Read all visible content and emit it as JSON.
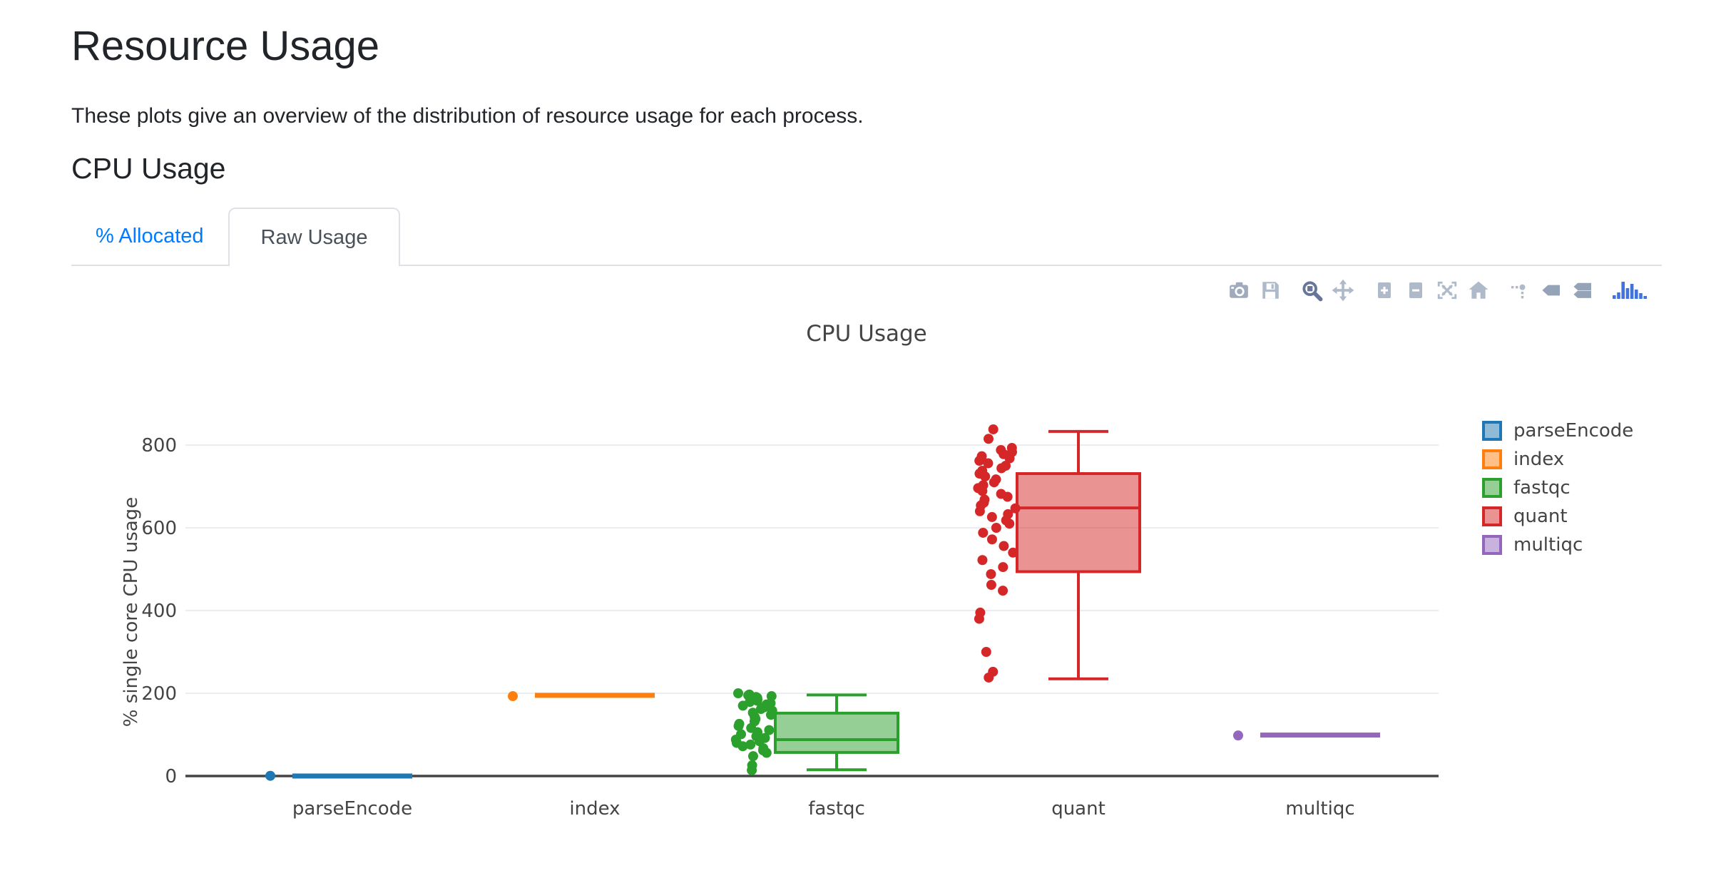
{
  "page": {
    "title": "Resource Usage",
    "subtitle": "These plots give an overview of the distribution of resource usage for each process.",
    "section_heading": "CPU Usage"
  },
  "tabs": [
    {
      "label": "% Allocated",
      "active": false
    },
    {
      "label": "Raw Usage",
      "active": true
    }
  ],
  "modebar": {
    "buttons": [
      "download-plot-camera",
      "save-cloud",
      "zoom",
      "pan",
      "zoom-in",
      "zoom-out",
      "autoscale",
      "reset-axes-home",
      "toggle-spike-lines",
      "show-closest-on-hover",
      "compare-data-on-hover",
      "plotly-logo"
    ],
    "active_button": "zoom"
  },
  "colors": {
    "tab_link": "#007bff",
    "tab_active_text": "#495057",
    "tab_border": "#dee2e6",
    "modebar_icon": "#aeb9c9",
    "modebar_icon_active": "#66769a",
    "modebar_logo": "#4273dc",
    "chart_text": "#444444",
    "gridline": "#ebedf0",
    "zero_line": "#444444"
  },
  "chart_data": {
    "type": "box",
    "title": "CPU Usage",
    "xlabel": "",
    "ylabel": "% single core CPU usage",
    "categories": [
      "parseEncode",
      "index",
      "fastqc",
      "quant",
      "multiqc"
    ],
    "yaxis": {
      "ticks": [
        0,
        200,
        400,
        600,
        800
      ],
      "range": [
        -45,
        880
      ],
      "grid": true
    },
    "legend_position": "right",
    "series": [
      {
        "name": "parseEncode",
        "color": "#1f77b4",
        "fill": "rgba(31,119,180,0.5)",
        "box": {
          "min": 0,
          "q1": 0,
          "median": 0,
          "q3": 0,
          "max": 0
        },
        "points": [
          0.5
        ]
      },
      {
        "name": "index",
        "color": "#ff7f0e",
        "fill": "rgba(255,127,14,0.5)",
        "box": {
          "min": 195,
          "q1": 195,
          "median": 195,
          "q3": 195,
          "max": 195
        },
        "points": [
          193
        ]
      },
      {
        "name": "fastqc",
        "color": "#2ca02c",
        "fill": "rgba(44,160,44,0.5)",
        "box": {
          "min": 15,
          "q1": 57,
          "median": 88,
          "q3": 152,
          "max": 196
        },
        "points": [
          200,
          197,
          195,
          193,
          191,
          189,
          187,
          185,
          182,
          179,
          176,
          173,
          170,
          166,
          162,
          158,
          153,
          148,
          143,
          138,
          132,
          126,
          121,
          116,
          111,
          106,
          101,
          96,
          92,
          88,
          84,
          80,
          76,
          72,
          67,
          62,
          56,
          48,
          26,
          14
        ]
      },
      {
        "name": "quant",
        "color": "#d62728",
        "fill": "rgba(214,39,40,0.5)",
        "box": {
          "min": 235,
          "q1": 494,
          "median": 648,
          "q3": 731,
          "max": 833
        },
        "points": [
          838,
          815,
          793,
          788,
          783,
          778,
          773,
          768,
          762,
          756,
          750,
          744,
          738,
          731,
          724,
          717,
          710,
          703,
          696,
          689,
          682,
          675,
          668,
          661,
          654,
          647,
          640,
          633,
          626,
          618,
          610,
          600,
          588,
          572,
          556,
          540,
          522,
          505,
          488,
          462,
          448,
          395,
          380,
          300,
          252,
          238
        ]
      },
      {
        "name": "multiqc",
        "color": "#9467bd",
        "fill": "rgba(148,103,189,0.5)",
        "box": {
          "min": 99,
          "q1": 99,
          "median": 99,
          "q3": 99,
          "max": 99
        },
        "points": [
          98
        ]
      }
    ]
  }
}
